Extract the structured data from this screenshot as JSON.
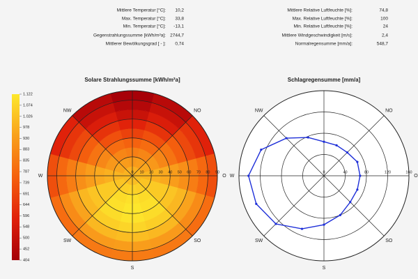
{
  "stats": {
    "left": [
      {
        "label": "Mittlere Temperatur [°C]:",
        "value": "10,2"
      },
      {
        "label": "Max. Temperatur [°C]:",
        "value": "33,8"
      },
      {
        "label": "Min. Temperatur [°C]:",
        "value": "-13,1"
      },
      {
        "label": "Gegenstrahlungssumme [kWh/m²a]:",
        "value": "2744,7"
      },
      {
        "label": "Mittlerer Bewölkungsgrad [ - ]:",
        "value": "0,74"
      }
    ],
    "right": [
      {
        "label": "Mittlere Relative Luftfeuchte [%]:",
        "value": "74,8"
      },
      {
        "label": "Max. Relative Luftfeuchte [%]:",
        "value": "100"
      },
      {
        "label": "Min. Relative Luftfeuchte [%]:",
        "value": "24"
      },
      {
        "label": "Mittlere Windgeschwindigkeit [m/s]:",
        "value": "2,4"
      },
      {
        "label": "Normalregensumme [mm/a]:",
        "value": "548,7"
      }
    ]
  },
  "chart_data": [
    {
      "type": "polar-heatmap",
      "title": "Solare Strahlungssumme [kWh/m²a]",
      "directions": [
        "NO",
        "O",
        "SO",
        "S",
        "SW",
        "W",
        "NW"
      ],
      "rlim": [
        0,
        90
      ],
      "rticks": [
        0,
        10,
        20,
        30,
        40,
        50,
        60,
        70,
        80,
        90
      ],
      "values": [
        [
          980,
          983,
          990,
          1000,
          1010,
          1017,
          1020,
          1017,
          1010,
          1000,
          990,
          983
        ],
        [
          920,
          930,
          958,
          995,
          1033,
          1060,
          1070,
          1060,
          1033,
          995,
          958,
          930
        ],
        [
          850,
          869,
          919,
          985,
          1047,
          1090,
          1105,
          1090,
          1047,
          985,
          919,
          869
        ],
        [
          770,
          798,
          873,
          965,
          1048,
          1102,
          1120,
          1102,
          1048,
          965,
          873,
          798
        ],
        [
          680,
          719,
          818,
          935,
          1033,
          1091,
          1110,
          1091,
          1033,
          935,
          818,
          719
        ],
        [
          590,
          638,
          758,
          895,
          1001,
          1058,
          1075,
          1058,
          1001,
          895,
          758,
          638
        ],
        [
          510,
          564,
          698,
          845,
          951,
          1002,
          1015,
          1002,
          951,
          845,
          698,
          564
        ],
        [
          450,
          506,
          641,
          785,
          883,
          926,
          935,
          926,
          883,
          785,
          641,
          506
        ],
        [
          410,
          461,
          585,
          715,
          800,
          834,
          840,
          834,
          800,
          715,
          585,
          461
        ]
      ],
      "clim": [
        404,
        1122
      ],
      "cticks": [
        {
          "value": 1122,
          "label": "1.122"
        },
        {
          "value": 1074,
          "label": "1.074"
        },
        {
          "value": 1026,
          "label": "1.026"
        },
        978,
        930,
        883,
        835,
        787,
        739,
        691,
        644,
        596,
        548,
        500,
        452,
        404
      ],
      "colormap": [
        "#a50008",
        "#e0200a",
        "#f5600e",
        "#f9a01c",
        "#fde82c"
      ]
    },
    {
      "type": "polar-line",
      "title": "Schlagregensumme [mm/a]",
      "directions": [
        "NO",
        "O",
        "SO",
        "S",
        "SW",
        "W",
        "NW"
      ],
      "rlim": [
        0,
        160
      ],
      "rticks": [
        0,
        40,
        80,
        120,
        160
      ],
      "values": [
        64,
        62,
        62,
        68,
        68,
        68,
        70,
        80,
        92,
        108,
        128,
        138,
        142,
        128,
        100,
        78
      ],
      "color": "#1e2fd8"
    }
  ]
}
